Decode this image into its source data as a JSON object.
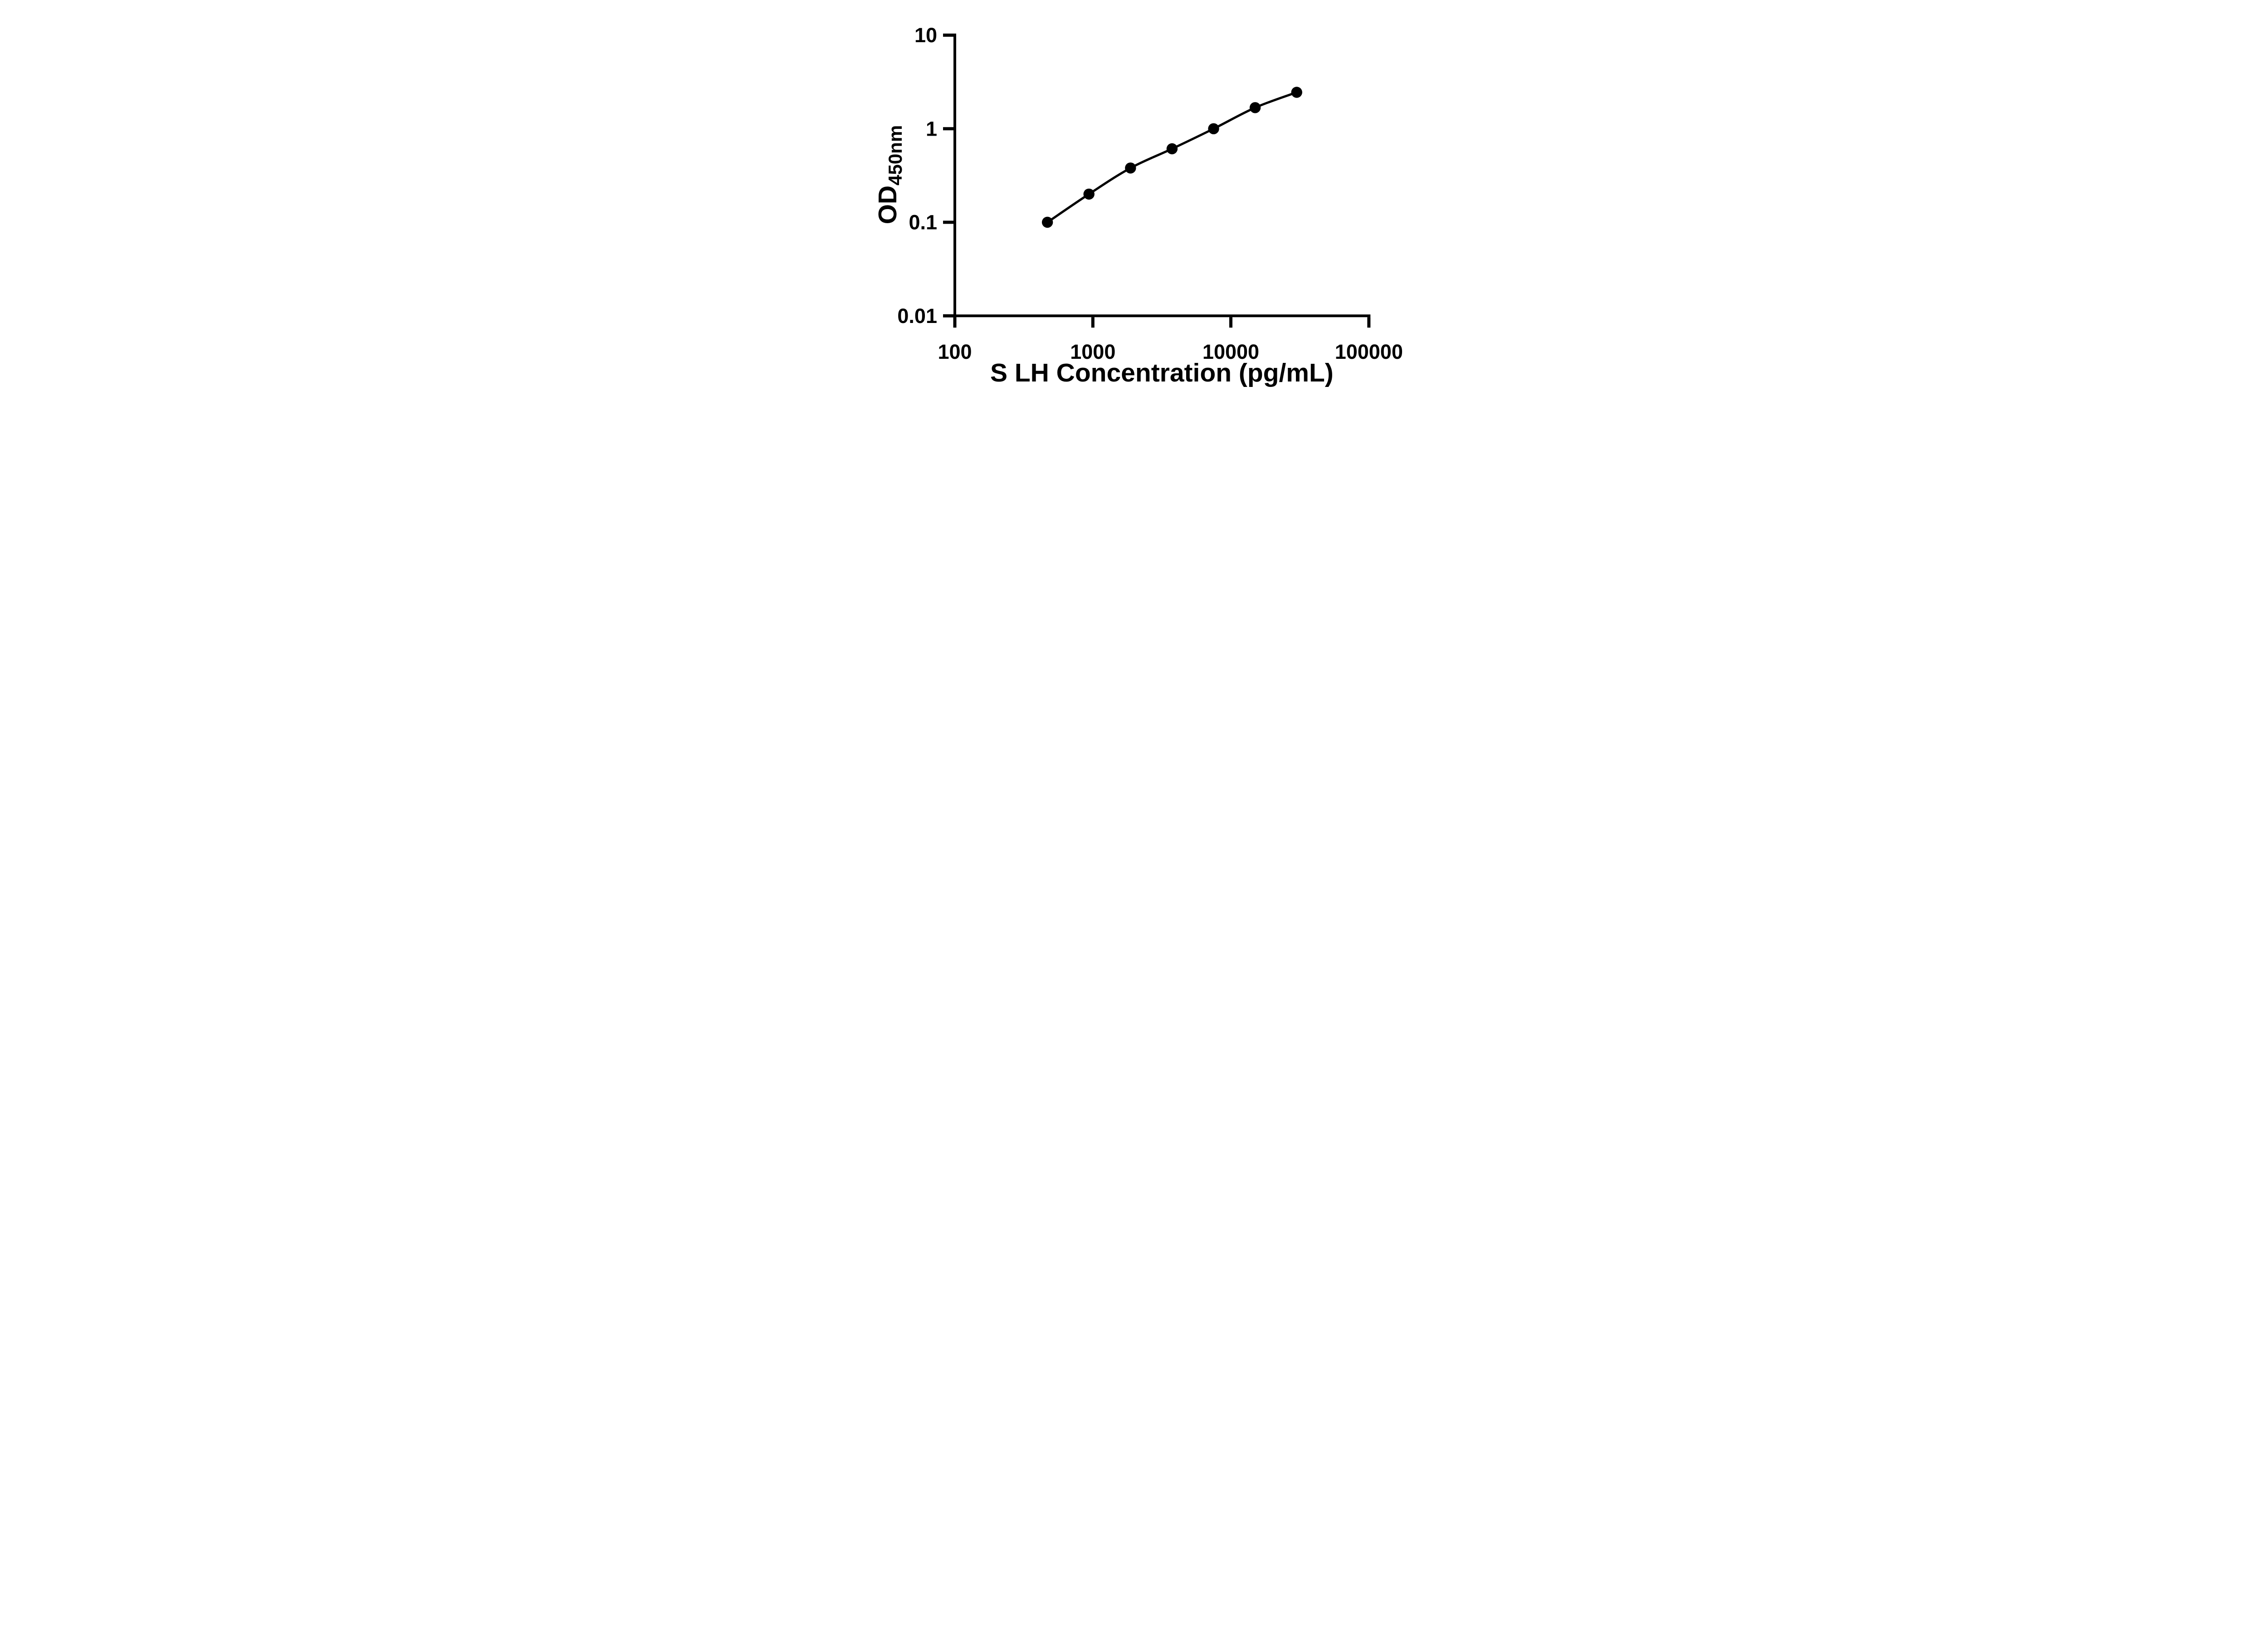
{
  "figure": {
    "background_color": "#ffffff",
    "ink_color": "#000000",
    "style": "prism-standard-curve"
  },
  "chart_data": {
    "type": "scatter",
    "subtype": "elisa-standard-curve",
    "title": "",
    "xlabel": "S LH Concentration (pg/mL)",
    "ylabel_main": "OD",
    "ylabel_subscript": "450nm",
    "x_scale": "log10",
    "y_scale": "log10",
    "xlim": [
      100,
      100000
    ],
    "ylim": [
      0.01,
      10
    ],
    "x_ticks": [
      100,
      1000,
      10000,
      100000
    ],
    "x_tick_labels": [
      "100",
      "1000",
      "10000",
      "100000"
    ],
    "y_ticks": [
      10,
      1,
      0.1,
      0.01
    ],
    "y_tick_labels": [
      "10",
      "1",
      "0.1",
      "0.01"
    ],
    "grid": false,
    "legend_position": "none",
    "marker_style": "filled-circle",
    "marker_color": "#000000",
    "line_style": "smooth",
    "line_color": "#000000",
    "series": [
      {
        "x": [
          468.75,
          937.5,
          1875,
          3750,
          7500,
          15000,
          30000
        ],
        "y": [
          0.1,
          0.2,
          0.38,
          0.61,
          1.0,
          1.68,
          2.45
        ]
      }
    ]
  }
}
